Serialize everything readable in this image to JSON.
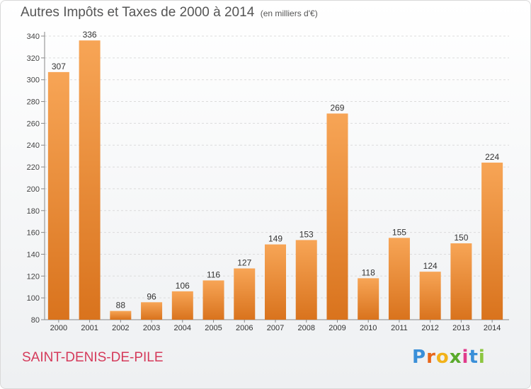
{
  "header": {
    "title": "Autres Impôts et Taxes de 2000 à 2014",
    "unit": "(en milliers d'€)"
  },
  "footer": {
    "city": "SAINT-DENIS-DE-PILE",
    "brand_letters": [
      "P",
      "r",
      "o",
      "x",
      "i",
      "t",
      "i"
    ]
  },
  "colors": {
    "bar_light": "#f7a556",
    "bar_dark": "#d9731d",
    "city": "#d53a5a",
    "brand": [
      "#3a8fd8",
      "#e8661a",
      "#f2b21a",
      "#5aaa2c",
      "#e03b8b",
      "#3a8fd8",
      "#8cc63f"
    ]
  },
  "chart_data": {
    "type": "bar",
    "title": "Autres Impôts et Taxes de 2000 à 2014",
    "xlabel": "",
    "ylabel": "",
    "categories": [
      "2000",
      "2001",
      "2002",
      "2003",
      "2004",
      "2005",
      "2006",
      "2007",
      "2008",
      "2009",
      "2010",
      "2011",
      "2012",
      "2013",
      "2014"
    ],
    "values": [
      307,
      336,
      88,
      96,
      106,
      116,
      127,
      149,
      153,
      269,
      118,
      155,
      124,
      150,
      224
    ],
    "ylim": [
      80,
      340
    ],
    "yticks": [
      80,
      100,
      120,
      140,
      160,
      180,
      200,
      220,
      240,
      260,
      280,
      300,
      320,
      340
    ],
    "grid": true
  }
}
